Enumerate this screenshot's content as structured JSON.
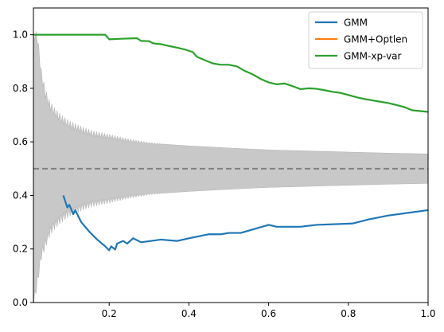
{
  "chart_data": {
    "type": "line",
    "title": "",
    "xlabel": "",
    "ylabel": "",
    "xlim": [
      0.01,
      1.0
    ],
    "ylim": [
      0.0,
      1.1
    ],
    "x_ticks": [
      0.2,
      0.4,
      0.6,
      0.8,
      1.0
    ],
    "x_tick_labels": [
      "0.2",
      "0.4",
      "0.6",
      "0.8",
      "1.0"
    ],
    "y_ticks": [
      0.0,
      0.2,
      0.4,
      0.6,
      0.8,
      1.0
    ],
    "y_tick_labels": [
      "0.0",
      "0.2",
      "0.4",
      "0.6",
      "0.8",
      "1.0"
    ],
    "grid": false,
    "legend_position": "top-right",
    "reference_line": {
      "y": 0.5,
      "style": "dashed",
      "color": "#808080"
    },
    "band": {
      "color": "#c8c8c8",
      "upper": [
        [
          0.01,
          1.0
        ],
        [
          0.02,
          0.99
        ],
        [
          0.03,
          0.85
        ],
        [
          0.04,
          0.78
        ],
        [
          0.05,
          0.74
        ],
        [
          0.06,
          0.715
        ],
        [
          0.08,
          0.685
        ],
        [
          0.1,
          0.665
        ],
        [
          0.13,
          0.645
        ],
        [
          0.16,
          0.63
        ],
        [
          0.2,
          0.62
        ],
        [
          0.25,
          0.605
        ],
        [
          0.3,
          0.595
        ],
        [
          0.4,
          0.585
        ],
        [
          0.5,
          0.577
        ],
        [
          0.6,
          0.57
        ],
        [
          0.7,
          0.566
        ],
        [
          0.8,
          0.562
        ],
        [
          0.9,
          0.558
        ],
        [
          1.0,
          0.555
        ]
      ],
      "lower": [
        [
          0.01,
          0.0
        ],
        [
          0.02,
          0.08
        ],
        [
          0.03,
          0.18
        ],
        [
          0.04,
          0.22
        ],
        [
          0.05,
          0.26
        ],
        [
          0.06,
          0.285
        ],
        [
          0.08,
          0.315
        ],
        [
          0.1,
          0.335
        ],
        [
          0.13,
          0.355
        ],
        [
          0.16,
          0.37
        ],
        [
          0.2,
          0.38
        ],
        [
          0.25,
          0.395
        ],
        [
          0.3,
          0.405
        ],
        [
          0.4,
          0.415
        ],
        [
          0.5,
          0.423
        ],
        [
          0.6,
          0.43
        ],
        [
          0.7,
          0.434
        ],
        [
          0.8,
          0.438
        ],
        [
          0.9,
          0.442
        ],
        [
          1.0,
          0.445
        ]
      ]
    },
    "series": [
      {
        "name": "GMM",
        "color": "#1f77b4",
        "points": [
          [
            0.085,
            0.4
          ],
          [
            0.095,
            0.355
          ],
          [
            0.1,
            0.365
          ],
          [
            0.11,
            0.33
          ],
          [
            0.115,
            0.345
          ],
          [
            0.13,
            0.3
          ],
          [
            0.15,
            0.265
          ],
          [
            0.17,
            0.235
          ],
          [
            0.19,
            0.21
          ],
          [
            0.2,
            0.195
          ],
          [
            0.205,
            0.21
          ],
          [
            0.215,
            0.198
          ],
          [
            0.22,
            0.22
          ],
          [
            0.235,
            0.23
          ],
          [
            0.245,
            0.22
          ],
          [
            0.26,
            0.24
          ],
          [
            0.28,
            0.225
          ],
          [
            0.33,
            0.235
          ],
          [
            0.37,
            0.23
          ],
          [
            0.4,
            0.24
          ],
          [
            0.45,
            0.255
          ],
          [
            0.48,
            0.255
          ],
          [
            0.5,
            0.26
          ],
          [
            0.53,
            0.26
          ],
          [
            0.6,
            0.29
          ],
          [
            0.62,
            0.283
          ],
          [
            0.68,
            0.283
          ],
          [
            0.72,
            0.29
          ],
          [
            0.81,
            0.295
          ],
          [
            0.85,
            0.31
          ],
          [
            0.9,
            0.325
          ],
          [
            1.0,
            0.345
          ]
        ]
      },
      {
        "name": "GMM+Optlen",
        "color": "#ff7f0e",
        "points": []
      },
      {
        "name": "GMM-xp-var",
        "color": "#2ca02c",
        "points": [
          [
            0.01,
            1.0
          ],
          [
            0.05,
            1.0
          ],
          [
            0.1,
            1.0
          ],
          [
            0.15,
            1.0
          ],
          [
            0.19,
            1.0
          ],
          [
            0.2,
            0.983
          ],
          [
            0.23,
            0.985
          ],
          [
            0.27,
            0.987
          ],
          [
            0.28,
            0.977
          ],
          [
            0.3,
            0.976
          ],
          [
            0.31,
            0.968
          ],
          [
            0.33,
            0.965
          ],
          [
            0.35,
            0.958
          ],
          [
            0.37,
            0.952
          ],
          [
            0.39,
            0.945
          ],
          [
            0.41,
            0.935
          ],
          [
            0.42,
            0.918
          ],
          [
            0.44,
            0.905
          ],
          [
            0.46,
            0.893
          ],
          [
            0.48,
            0.888
          ],
          [
            0.5,
            0.888
          ],
          [
            0.52,
            0.882
          ],
          [
            0.54,
            0.865
          ],
          [
            0.56,
            0.852
          ],
          [
            0.58,
            0.835
          ],
          [
            0.6,
            0.822
          ],
          [
            0.62,
            0.815
          ],
          [
            0.64,
            0.818
          ],
          [
            0.66,
            0.808
          ],
          [
            0.68,
            0.797
          ],
          [
            0.7,
            0.8
          ],
          [
            0.72,
            0.798
          ],
          [
            0.74,
            0.793
          ],
          [
            0.76,
            0.787
          ],
          [
            0.78,
            0.783
          ],
          [
            0.8,
            0.775
          ],
          [
            0.82,
            0.767
          ],
          [
            0.84,
            0.76
          ],
          [
            0.86,
            0.755
          ],
          [
            0.88,
            0.75
          ],
          [
            0.9,
            0.745
          ],
          [
            0.92,
            0.738
          ],
          [
            0.94,
            0.73
          ],
          [
            0.96,
            0.718
          ],
          [
            0.98,
            0.715
          ],
          [
            1.0,
            0.712
          ]
        ]
      }
    ]
  }
}
